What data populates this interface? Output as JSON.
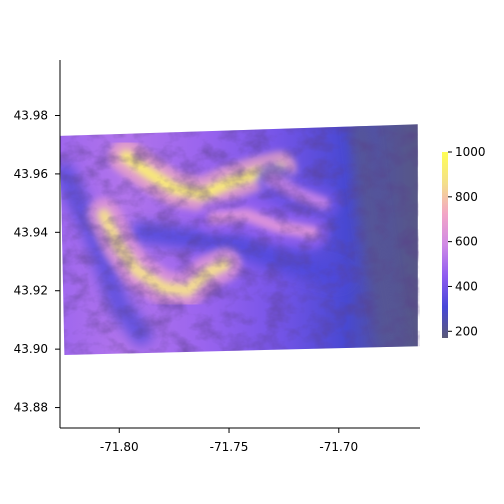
{
  "chart_data": {
    "type": "heatmap",
    "title": "",
    "xlabel": "",
    "ylabel": "",
    "xlim": [
      -71.827,
      -71.663
    ],
    "ylim": [
      43.873,
      43.999
    ],
    "x_ticks": [
      {
        "value": -71.8,
        "label": "-71.80"
      },
      {
        "value": -71.75,
        "label": "-71.75"
      },
      {
        "value": -71.7,
        "label": "-71.70"
      }
    ],
    "y_ticks": [
      {
        "value": 43.88,
        "label": "43.88"
      },
      {
        "value": 43.9,
        "label": "43.90"
      },
      {
        "value": 43.92,
        "label": "43.92"
      },
      {
        "value": 43.94,
        "label": "43.94"
      },
      {
        "value": 43.96,
        "label": "43.96"
      },
      {
        "value": 43.98,
        "label": "43.98"
      }
    ],
    "raster_corners": [
      {
        "name": "top-left",
        "lon": -71.827,
        "lat": 43.973
      },
      {
        "name": "top-right",
        "lon": -71.664,
        "lat": 43.977
      },
      {
        "name": "bottom-right",
        "lon": -71.663,
        "lat": 43.901
      },
      {
        "name": "bottom-left",
        "lon": -71.825,
        "lat": 43.898
      }
    ],
    "colorbar": {
      "min": 170,
      "max": 1000,
      "ticks": [
        {
          "value": 200,
          "label": "200"
        },
        {
          "value": 400,
          "label": "400"
        },
        {
          "value": 600,
          "label": "600"
        },
        {
          "value": 800,
          "label": "800"
        },
        {
          "value": 1000,
          "label": "1000"
        }
      ],
      "colors": [
        "#5a5a78",
        "#4747d8",
        "#8f5cf0",
        "#d08ae6",
        "#f3a5c6",
        "#f4e08a",
        "#ffff55"
      ]
    },
    "ridges": [
      {
        "name": "north-ridge",
        "points": [
          [
            -71.797,
            43.966
          ],
          [
            -71.786,
            43.96
          ],
          [
            -71.775,
            43.955
          ],
          [
            -71.762,
            43.953
          ],
          [
            -71.75,
            43.957
          ],
          [
            -71.738,
            43.96
          ],
          [
            -71.727,
            43.962
          ]
        ],
        "elev": 920
      },
      {
        "name": "south-ridge",
        "points": [
          [
            -71.807,
            43.946
          ],
          [
            -71.8,
            43.935
          ],
          [
            -71.792,
            43.927
          ],
          [
            -71.78,
            43.921
          ],
          [
            -71.769,
            43.92
          ],
          [
            -71.76,
            43.926
          ],
          [
            -71.752,
            43.929
          ]
        ],
        "elev": 860
      },
      {
        "name": "mid-spur",
        "points": [
          [
            -71.757,
            43.945
          ],
          [
            -71.742,
            43.946
          ],
          [
            -71.728,
            43.942
          ],
          [
            -71.712,
            43.94
          ]
        ],
        "elev": 640
      },
      {
        "name": "east-spur",
        "points": [
          [
            -71.73,
            43.958
          ],
          [
            -71.718,
            43.953
          ],
          [
            -71.707,
            43.95
          ]
        ],
        "elev": 560
      }
    ],
    "valleys": [
      {
        "name": "western-valley",
        "points": [
          [
            -71.825,
            43.96
          ],
          [
            -71.812,
            43.94
          ],
          [
            -71.8,
            43.915
          ],
          [
            -71.79,
            43.905
          ]
        ],
        "elev": 340
      },
      {
        "name": "central-valley",
        "points": [
          [
            -71.79,
            43.94
          ],
          [
            -71.77,
            43.938
          ],
          [
            -71.748,
            43.936
          ],
          [
            -71.725,
            43.93
          ],
          [
            -71.7,
            43.925
          ]
        ],
        "elev": 320
      },
      {
        "name": "east-lowland",
        "points": [
          [
            -71.69,
            43.975
          ],
          [
            -71.686,
            43.95
          ],
          [
            -71.681,
            43.925
          ],
          [
            -71.676,
            43.905
          ]
        ],
        "elev": 210
      }
    ]
  }
}
